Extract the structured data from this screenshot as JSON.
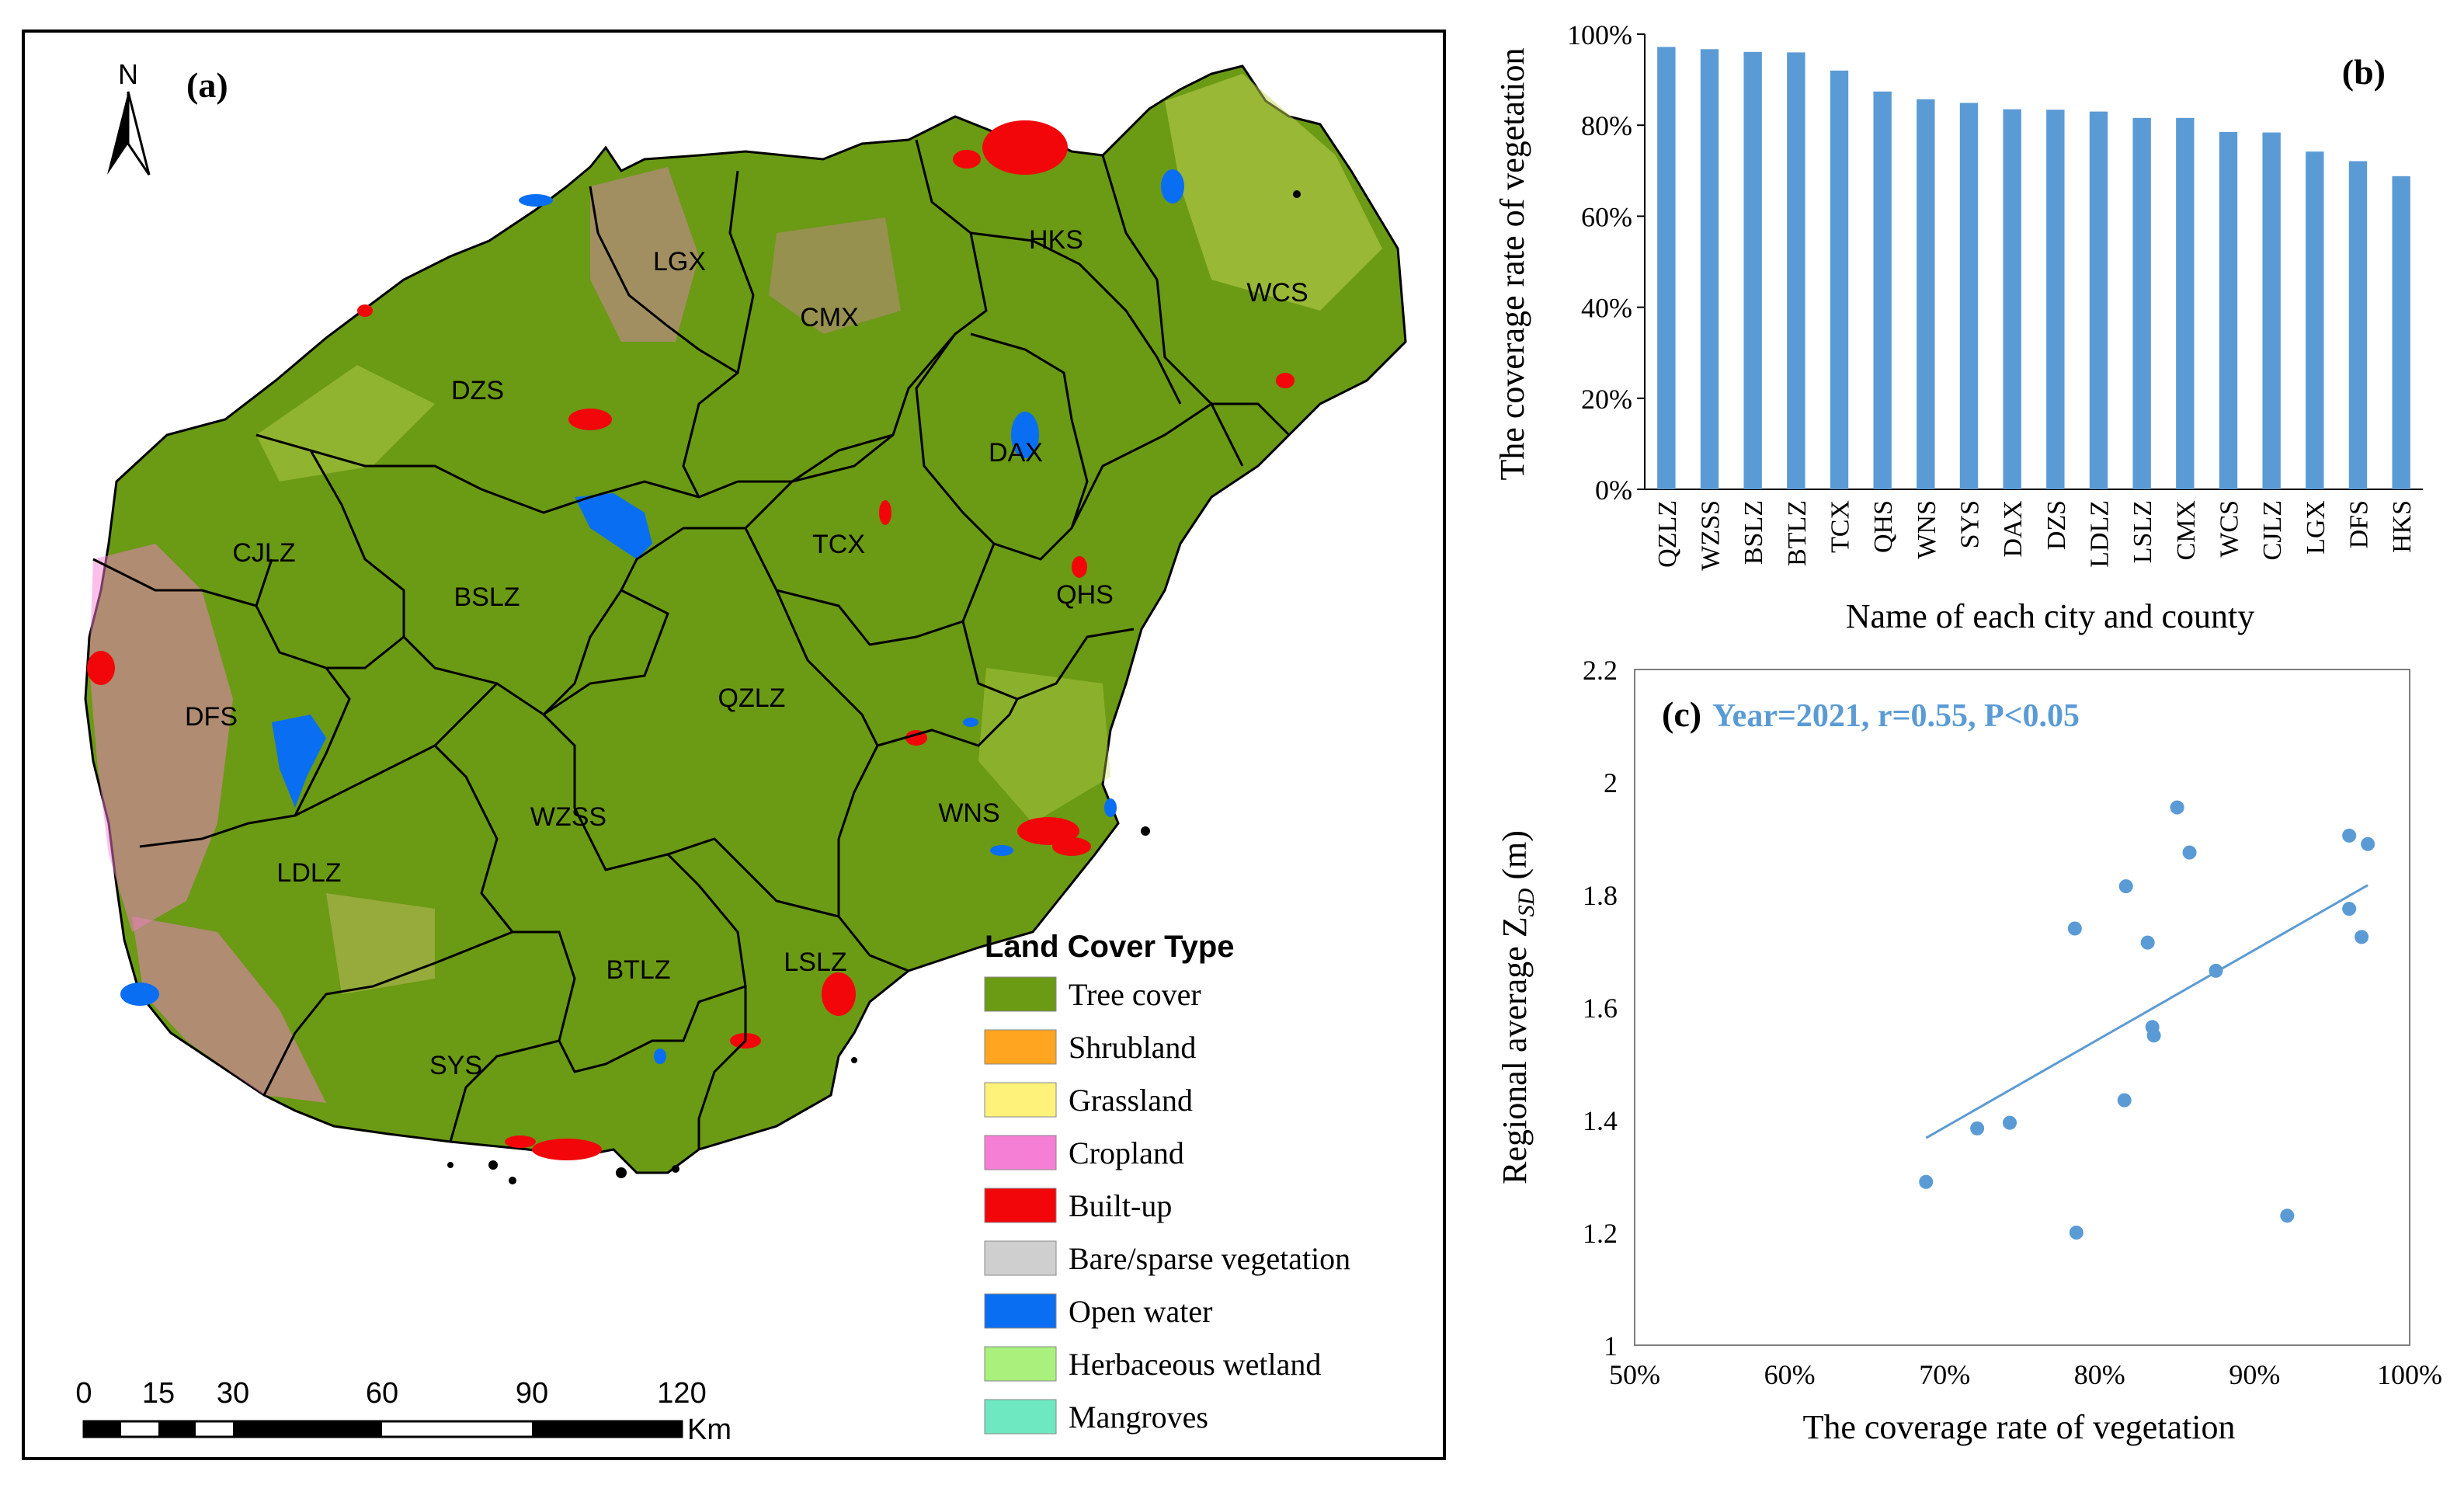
{
  "map_panel": {
    "panel_label": "(a)",
    "north": "N",
    "scale_ticks": [
      "0",
      "15",
      "30",
      "60",
      "90",
      "120"
    ],
    "scale_unit": "Km",
    "regions": [
      "LGX",
      "HKS",
      "WCS",
      "CMX",
      "DZS",
      "DAX",
      "TCX",
      "CJLZ",
      "BSLZ",
      "QHS",
      "DFS",
      "QZLZ",
      "WZSS",
      "WNS",
      "LDLZ",
      "BTLZ",
      "LSLZ",
      "SYS"
    ],
    "legend": {
      "title": "Land Cover Type",
      "items": [
        {
          "label": "Tree cover",
          "color": "#6b9a14"
        },
        {
          "label": "Shrubland",
          "color": "#ffa51f"
        },
        {
          "label": "Grassland",
          "color": "#fff27a"
        },
        {
          "label": "Cropland",
          "color": "#f57fd4"
        },
        {
          "label": "Built-up",
          "color": "#f2060a"
        },
        {
          "label": "Bare/sparse vegetation",
          "color": "#cfcfcf"
        },
        {
          "label": "Open water",
          "color": "#0a6ef2"
        },
        {
          "label": "Herbaceous wetland",
          "color": "#a9f07d"
        },
        {
          "label": "Mangroves",
          "color": "#6ee8c0"
        }
      ]
    }
  },
  "chart_data": [
    {
      "panel_label": "(b)",
      "type": "bar",
      "categories": [
        "QZLZ",
        "WZSS",
        "BSLZ",
        "BTLZ",
        "TCX",
        "QHS",
        "WNS",
        "SYS",
        "DAX",
        "DZS",
        "LDLZ",
        "LSLZ",
        "CMX",
        "WCS",
        "CJLZ",
        "LGX",
        "DFS",
        "HKS"
      ],
      "values": [
        97.2,
        96.7,
        96.1,
        96.0,
        92.0,
        87.4,
        85.7,
        84.9,
        83.5,
        83.4,
        83.0,
        81.6,
        81.6,
        78.5,
        78.4,
        74.2,
        72.1,
        68.8
      ],
      "value_unit": "%",
      "ylim": [
        0,
        100
      ],
      "yticks": [
        "0%",
        "20%",
        "40%",
        "60%",
        "80%",
        "100%"
      ],
      "xlabel": "Name of each city and county",
      "ylabel": "The coverage rate of vegetation",
      "color": "#5b9bd5"
    },
    {
      "panel_label": "(c)",
      "type": "scatter",
      "annotation": "Year=2021, r=0.55, P<0.05",
      "x": [
        0.688,
        0.721,
        0.742,
        0.784,
        0.785,
        0.816,
        0.817,
        0.831,
        0.834,
        0.835,
        0.85,
        0.858,
        0.875,
        0.921,
        0.961,
        0.961,
        0.969,
        0.973
      ],
      "y": [
        1.29,
        1.385,
        1.395,
        1.74,
        1.2,
        1.435,
        1.815,
        1.715,
        1.565,
        1.55,
        1.955,
        1.875,
        1.665,
        1.23,
        1.905,
        1.775,
        1.725,
        1.89
      ],
      "trendline": {
        "x": [
          0.688,
          0.973
        ],
        "y": [
          1.368,
          1.817
        ]
      },
      "xlim": [
        0.5,
        1.0
      ],
      "ylim": [
        1.0,
        2.2
      ],
      "xticks": [
        "50%",
        "60%",
        "70%",
        "80%",
        "90%",
        "100%"
      ],
      "yticks": [
        "1",
        "1.2",
        "1.4",
        "1.6",
        "1.8",
        "2",
        "2.2"
      ],
      "xlabel": "The coverage rate of vegetation",
      "ylabel_main": "Regional average Z",
      "ylabel_sub": "SD",
      "ylabel_tail": " (m)",
      "color": "#5b9bd5"
    }
  ]
}
